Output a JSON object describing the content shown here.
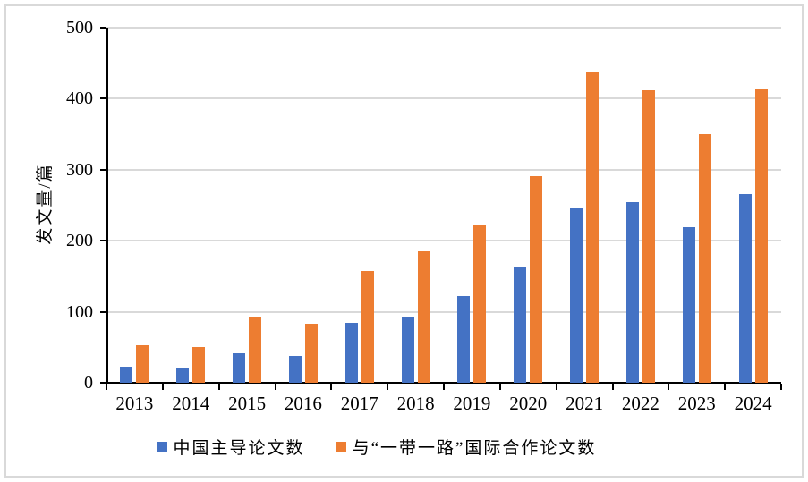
{
  "chart_data": {
    "type": "bar",
    "title": "",
    "xlabel": "",
    "ylabel": "发文量/篇",
    "ylim": [
      0,
      500
    ],
    "ytick_step": 100,
    "yticks": [
      0,
      100,
      200,
      300,
      400,
      500
    ],
    "categories": [
      "2013",
      "2014",
      "2015",
      "2016",
      "2017",
      "2018",
      "2019",
      "2020",
      "2021",
      "2022",
      "2023",
      "2024"
    ],
    "series": [
      {
        "name": "中国主导论文数",
        "color": "#4472C4",
        "values": [
          23,
          21,
          41,
          38,
          85,
          92,
          122,
          163,
          245,
          255,
          219,
          266
        ]
      },
      {
        "name": "与“一带一路”国际合作论文数",
        "color": "#ED7D31",
        "values": [
          53,
          50,
          93,
          83,
          157,
          185,
          222,
          291,
          437,
          412,
          350,
          414
        ]
      }
    ],
    "grid": true,
    "legend_position": "bottom",
    "gridline_color": "#D9D9D9",
    "axis_color": "#000000"
  }
}
